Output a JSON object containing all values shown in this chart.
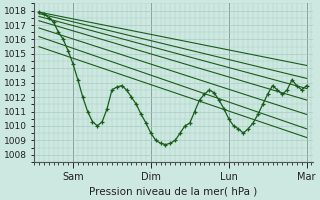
{
  "title": "Pression niveau de la mer( hPa )",
  "background_color": "#cce8e0",
  "grid_color": "#aaccbf",
  "line_color": "#1a5c1a",
  "ylim": [
    1007.5,
    1018.5
  ],
  "yticks": [
    1008,
    1009,
    1010,
    1011,
    1012,
    1013,
    1014,
    1015,
    1016,
    1017,
    1018
  ],
  "xtick_positions": [
    24,
    72,
    120,
    168
  ],
  "xtick_labels": [
    "Sam",
    "Dim",
    "Lun",
    "Mar"
  ],
  "smooth_lines": [
    [
      3,
      1017.9,
      168,
      1014.2
    ],
    [
      3,
      1017.8,
      168,
      1013.3
    ],
    [
      3,
      1017.6,
      168,
      1012.6
    ],
    [
      3,
      1017.3,
      168,
      1011.8
    ],
    [
      3,
      1016.8,
      168,
      1010.8
    ],
    [
      3,
      1016.2,
      168,
      1009.8
    ],
    [
      3,
      1015.5,
      168,
      1009.2
    ]
  ],
  "detailed_line": [
    [
      3,
      1017.9
    ],
    [
      6,
      1017.8
    ],
    [
      9,
      1017.5
    ],
    [
      12,
      1017.2
    ],
    [
      15,
      1016.5
    ],
    [
      18,
      1016.0
    ],
    [
      21,
      1015.2
    ],
    [
      24,
      1014.3
    ],
    [
      27,
      1013.2
    ],
    [
      30,
      1012.0
    ],
    [
      33,
      1011.0
    ],
    [
      36,
      1010.3
    ],
    [
      39,
      1010.0
    ],
    [
      42,
      1010.3
    ],
    [
      45,
      1011.2
    ],
    [
      48,
      1012.5
    ],
    [
      51,
      1012.7
    ],
    [
      54,
      1012.8
    ],
    [
      57,
      1012.5
    ],
    [
      60,
      1012.0
    ],
    [
      63,
      1011.5
    ],
    [
      66,
      1010.8
    ],
    [
      69,
      1010.2
    ],
    [
      72,
      1009.5
    ],
    [
      75,
      1009.0
    ],
    [
      78,
      1008.8
    ],
    [
      81,
      1008.7
    ],
    [
      84,
      1008.8
    ],
    [
      87,
      1009.0
    ],
    [
      90,
      1009.5
    ],
    [
      93,
      1010.0
    ],
    [
      96,
      1010.2
    ],
    [
      99,
      1011.0
    ],
    [
      102,
      1011.8
    ],
    [
      105,
      1012.2
    ],
    [
      108,
      1012.5
    ],
    [
      111,
      1012.3
    ],
    [
      114,
      1011.8
    ],
    [
      117,
      1011.2
    ],
    [
      120,
      1010.5
    ],
    [
      123,
      1010.0
    ],
    [
      126,
      1009.8
    ],
    [
      129,
      1009.5
    ],
    [
      132,
      1009.8
    ],
    [
      135,
      1010.2
    ],
    [
      138,
      1010.8
    ],
    [
      141,
      1011.5
    ],
    [
      144,
      1012.2
    ],
    [
      147,
      1012.8
    ],
    [
      150,
      1012.5
    ],
    [
      153,
      1012.2
    ],
    [
      156,
      1012.5
    ],
    [
      159,
      1013.2
    ],
    [
      162,
      1012.8
    ],
    [
      165,
      1012.5
    ],
    [
      168,
      1012.8
    ]
  ]
}
